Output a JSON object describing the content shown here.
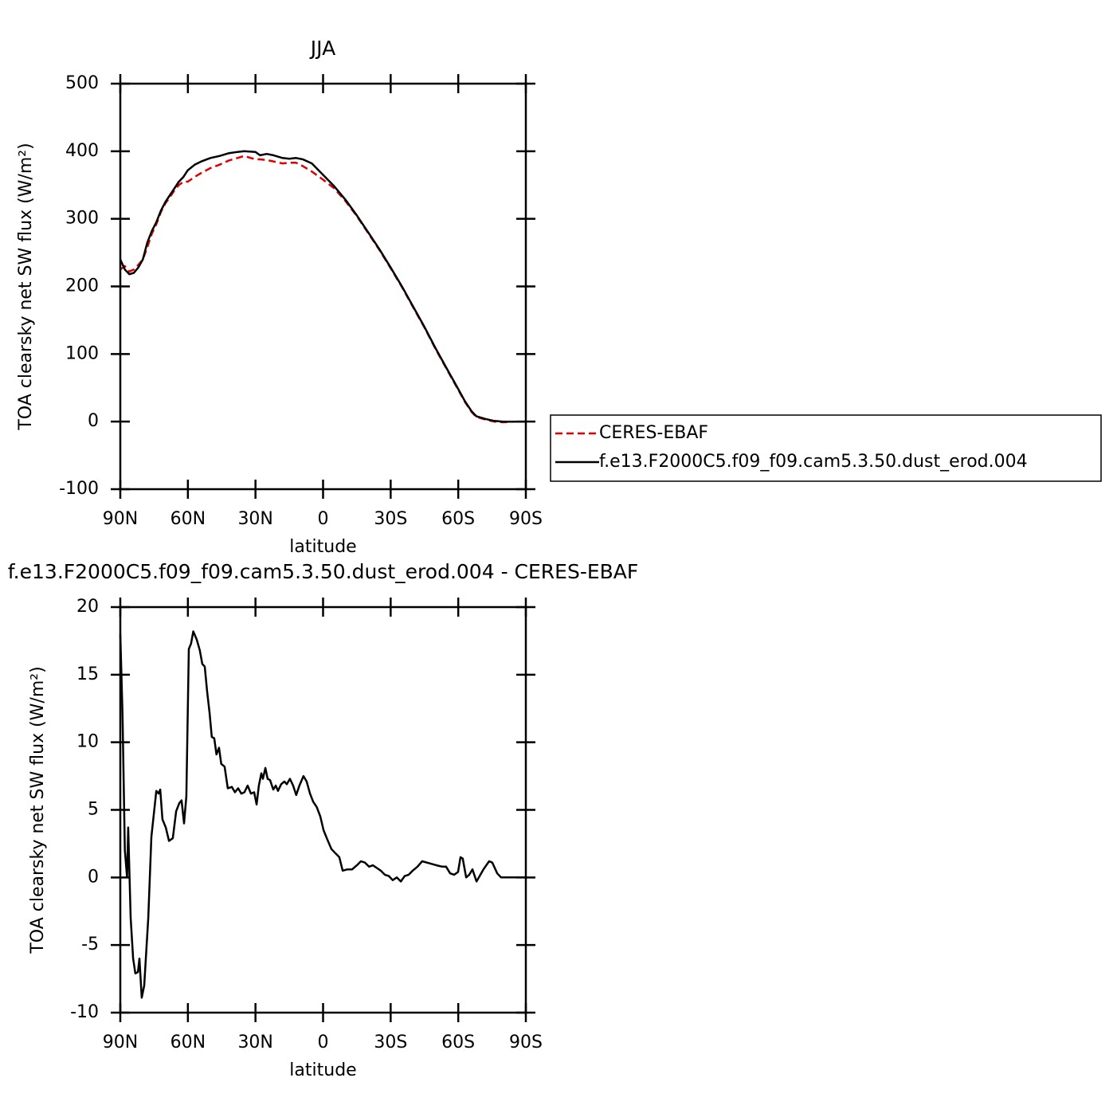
{
  "chart_data": [
    {
      "type": "line",
      "title": "JJA",
      "xlabel": "latitude",
      "ylabel": "TOA clearsky net SW flux (W/m²)",
      "x": [
        90,
        88,
        86,
        84,
        82,
        80,
        78,
        76,
        74,
        72,
        70,
        68,
        66,
        64,
        62,
        60,
        57,
        54,
        50,
        46,
        42,
        38,
        35,
        30,
        28,
        25,
        22,
        18,
        15,
        12,
        9,
        5,
        0,
        -5,
        -10,
        -15,
        -20,
        -25,
        -30,
        -35,
        -40,
        -45,
        -50,
        -55,
        -60,
        -63,
        -66,
        -68,
        -72,
        -76,
        -80,
        -85,
        -90
      ],
      "series": [
        {
          "name": "CERES-EBAF",
          "color": "#e00000",
          "dashed": true,
          "values": [
            225,
            230,
            222,
            225,
            232,
            240,
            258,
            278,
            292,
            310,
            323,
            332,
            342,
            350,
            355,
            355,
            362,
            368,
            375,
            380,
            386,
            390,
            393,
            388,
            388,
            387,
            385,
            382,
            383,
            383,
            378,
            370,
            358,
            345,
            326,
            304,
            279,
            254,
            227,
            199,
            169,
            139,
            107,
            77,
            47,
            29,
            14,
            7,
            3,
            0,
            -1,
            0,
            0
          ]
        },
        {
          "name": "f.e13.F2000C5.f09_f09.cam5.3.50.dust_erod.004",
          "color": "#000000",
          "dashed": false,
          "values": [
            240,
            225,
            218,
            220,
            228,
            240,
            265,
            282,
            295,
            312,
            325,
            335,
            345,
            355,
            362,
            372,
            380,
            385,
            390,
            393,
            397,
            399,
            400,
            399,
            394,
            396,
            394,
            390,
            389,
            390,
            388,
            382,
            365,
            348,
            328,
            305,
            280,
            255,
            228,
            200,
            170,
            140,
            108,
            78,
            48,
            30,
            15,
            8,
            4,
            1,
            0,
            0,
            0
          ]
        }
      ],
      "xlim": [
        90,
        -90
      ],
      "xticks": [
        {
          "value": 90,
          "label": "90N"
        },
        {
          "value": 60,
          "label": "60N"
        },
        {
          "value": 30,
          "label": "30N"
        },
        0,
        {
          "value": -30,
          "label": "30S"
        },
        {
          "value": -60,
          "label": "60S"
        },
        {
          "value": -90,
          "label": "90S"
        }
      ],
      "ylim": [
        -100,
        500
      ],
      "yticks": [
        -100,
        0,
        100,
        200,
        300,
        400,
        500
      ],
      "legend": "right"
    },
    {
      "type": "line",
      "title": "f.e13.F2000C5.f09_f09.cam5.3.50.dust_erod.004 - CERES-EBAF",
      "xlabel": "latitude",
      "ylabel": "TOA clearsky net SW flux (W/m²)",
      "x": [
        90,
        89,
        88,
        87,
        86.5,
        85.4,
        84.3,
        83.3,
        82.2,
        81.5,
        80.5,
        79.4,
        77.6,
        76.2,
        74,
        73,
        72.3,
        71.3,
        69.8,
        68.4,
        66.7,
        65.2,
        63.8,
        62.8,
        61.7,
        60.7,
        59.6,
        58.6,
        57.6,
        56.1,
        54.7,
        53.6,
        52.5,
        51.5,
        50.4,
        49.4,
        48.3,
        47.3,
        46.2,
        45.2,
        43.7,
        42.3,
        40.5,
        39.1,
        37.7,
        36.3,
        34.9,
        33.5,
        32,
        30.6,
        29.5,
        28.5,
        27.4,
        26.7,
        25.6,
        24.6,
        23.5,
        22.1,
        21,
        20,
        18.6,
        17.2,
        16.1,
        14.7,
        13.3,
        11.9,
        10.5,
        8.7,
        7.3,
        5.8,
        4.4,
        2.8,
        1.2,
        -0.2,
        -1.9,
        -3.7,
        -5.4,
        -7.2,
        -8.7,
        -10.8,
        -12.9,
        -15,
        -16.8,
        -18.6,
        -20.4,
        -22.1,
        -23.9,
        -25.6,
        -27.4,
        -29.2,
        -30.9,
        -32.7,
        -34.5,
        -36.2,
        -38,
        -39.8,
        -41.9,
        -44,
        -46.1,
        -48.3,
        -50.4,
        -52.9,
        -54.6,
        -56.4,
        -58.2,
        -59.9,
        -61,
        -62,
        -63.5,
        -64.9,
        -66.3,
        -68.1,
        -69.5,
        -71.2,
        -73.7,
        -75.1,
        -77.3,
        -79,
        -82.9,
        -90
      ],
      "series": [
        {
          "color": "#000000",
          "dashed": false,
          "values": [
            18,
            12,
            2,
            0,
            3.7,
            -3,
            -6,
            -7.1,
            -7,
            -6,
            -8.9,
            -8,
            -3,
            3,
            6.4,
            6.2,
            6.5,
            4.3,
            3.7,
            2.7,
            2.9,
            4.9,
            5.5,
            5.7,
            4,
            6,
            16.9,
            17.3,
            18.2,
            17.6,
            16.8,
            15.8,
            15.6,
            13.8,
            12.2,
            10.4,
            10.3,
            9.1,
            9.6,
            8.4,
            8.2,
            6.6,
            6.7,
            6.3,
            6.6,
            6.2,
            6.3,
            6.8,
            6.2,
            6.3,
            5.4,
            6.8,
            7.7,
            7.3,
            8.1,
            7.3,
            7.2,
            6.5,
            6.8,
            6.4,
            6.9,
            7.1,
            6.9,
            7.3,
            6.8,
            6.1,
            6.8,
            7.5,
            7.1,
            6.2,
            5.6,
            5.2,
            4.5,
            3.5,
            2.8,
            2.1,
            1.8,
            1.5,
            0.5,
            0.6,
            0.6,
            0.9,
            1.2,
            1.1,
            0.8,
            0.9,
            0.7,
            0.5,
            0.2,
            0.1,
            -0.2,
            0,
            -0.3,
            0.1,
            0.2,
            0.5,
            0.8,
            1.2,
            1.1,
            1,
            0.9,
            0.8,
            0.8,
            0.3,
            0.2,
            0.4,
            1.5,
            1.4,
            0,
            0.2,
            0.6,
            -0.3,
            0.1,
            0.6,
            1.2,
            1.1,
            0.3,
            0,
            0,
            0
          ]
        }
      ],
      "xlim": [
        90,
        -90
      ],
      "xticks": [
        {
          "value": 90,
          "label": "90N"
        },
        {
          "value": 60,
          "label": "60N"
        },
        {
          "value": 30,
          "label": "30N"
        },
        0,
        {
          "value": -30,
          "label": "30S"
        },
        {
          "value": -60,
          "label": "60S"
        },
        {
          "value": -90,
          "label": "90S"
        }
      ],
      "ylim": [
        -10,
        20
      ],
      "yticks": [
        -10,
        -5,
        0,
        5,
        10,
        15,
        20
      ]
    }
  ]
}
